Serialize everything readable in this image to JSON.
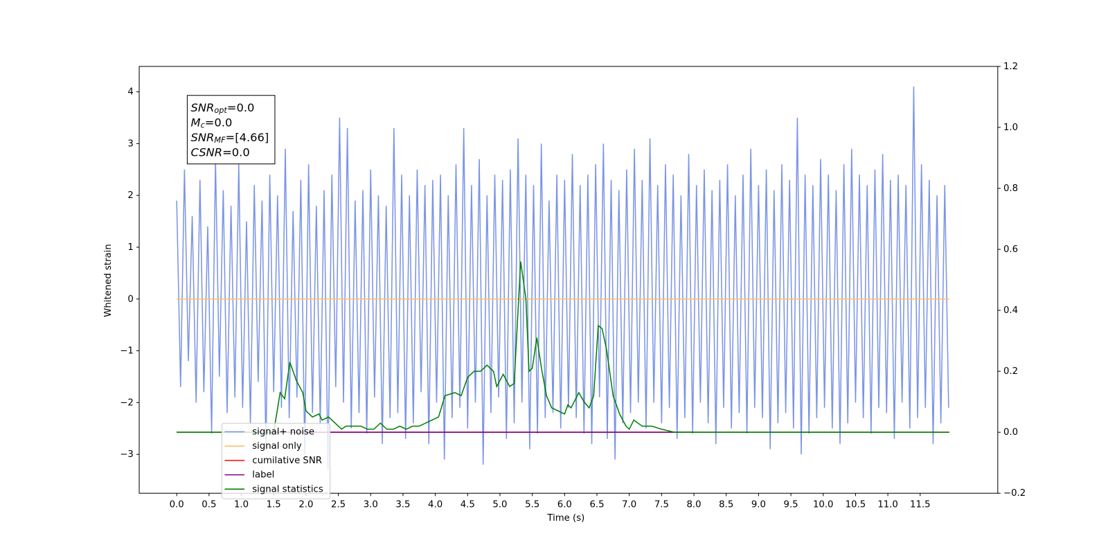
{
  "chart_data": {
    "type": "line",
    "xlabel": "Time (s)",
    "ylabel": "Whitened strain",
    "xlim": [
      -0.58,
      12.7
    ],
    "ylim": [
      -3.75,
      4.49
    ],
    "y2lim": [
      -0.2,
      1.2
    ],
    "xticks": [
      {
        "value": 0,
        "label": "0.0"
      },
      {
        "value": 0.5,
        "label": "0.5"
      },
      {
        "value": 1,
        "label": "1.0"
      },
      {
        "value": 1.5,
        "label": "1.5"
      },
      {
        "value": 2,
        "label": "2.0"
      },
      {
        "value": 2.5,
        "label": "2.5"
      },
      {
        "value": 3,
        "label": "3.0"
      },
      {
        "value": 3.5,
        "label": "3.5"
      },
      {
        "value": 4,
        "label": "4.0"
      },
      {
        "value": 4.5,
        "label": "4.5"
      },
      {
        "value": 5,
        "label": "5.0"
      },
      {
        "value": 5.5,
        "label": "5.5"
      },
      {
        "value": 6,
        "label": "6.0"
      },
      {
        "value": 6.5,
        "label": "6.5"
      },
      {
        "value": 7,
        "label": "7.0"
      },
      {
        "value": 7.5,
        "label": "7.5"
      },
      {
        "value": 8,
        "label": "8.0"
      },
      {
        "value": 8.5,
        "label": "8.5"
      },
      {
        "value": 9,
        "label": "9.0"
      },
      {
        "value": 9.5,
        "label": "9.5"
      },
      {
        "value": 10,
        "label": "10.0"
      },
      {
        "value": 10.5,
        "label": "10.5"
      },
      {
        "value": 11,
        "label": "11.0"
      },
      {
        "value": 11.5,
        "label": "11.5"
      }
    ],
    "yticks": [
      {
        "value": -3,
        "label": "−3"
      },
      {
        "value": -2,
        "label": "−2"
      },
      {
        "value": -1,
        "label": "−1"
      },
      0,
      1,
      2,
      3,
      4
    ],
    "y2ticks": [
      {
        "value": -0.2,
        "label": "−0.2"
      },
      {
        "value": 0,
        "label": "0.0"
      },
      {
        "value": 0.2,
        "label": "0.2"
      },
      {
        "value": 0.4,
        "label": "0.4"
      },
      {
        "value": 0.6,
        "label": "0.6"
      },
      {
        "value": 0.8,
        "label": "0.8"
      },
      {
        "value": 1,
        "label": "1.0"
      },
      {
        "value": 1.2,
        "label": "1.2"
      }
    ],
    "legend": "lower left",
    "textbox": [
      {
        "name": "SNR",
        "sub": "opt",
        "value": "=0.0"
      },
      {
        "name": "M",
        "sub": "c",
        "value": "=0.0"
      },
      {
        "name": "SNR",
        "sub": "MF",
        "value": "=[4.66]"
      },
      {
        "name": "CSNR",
        "value": "=0.0"
      }
    ],
    "series": [
      {
        "name": "signal+ noise",
        "color": "#7a94e6",
        "axis": "y",
        "x": [
          0,
          0.06,
          0.12,
          0.18,
          0.24,
          0.3,
          0.36,
          0.42,
          0.48,
          0.54,
          0.6,
          0.66,
          0.72,
          0.78,
          0.84,
          0.9,
          0.96,
          1.02,
          1.08,
          1.14,
          1.2,
          1.26,
          1.32,
          1.38,
          1.44,
          1.5,
          1.56,
          1.62,
          1.68,
          1.74,
          1.8,
          1.86,
          1.92,
          1.98,
          2.04,
          2.1,
          2.16,
          2.22,
          2.28,
          2.34,
          2.4,
          2.46,
          2.52,
          2.58,
          2.64,
          2.7,
          2.76,
          2.82,
          2.88,
          2.94,
          3,
          3.06,
          3.12,
          3.18,
          3.24,
          3.3,
          3.36,
          3.42,
          3.48,
          3.54,
          3.6,
          3.66,
          3.72,
          3.78,
          3.84,
          3.9,
          3.96,
          4.02,
          4.08,
          4.14,
          4.2,
          4.26,
          4.32,
          4.38,
          4.44,
          4.5,
          4.56,
          4.62,
          4.68,
          4.74,
          4.8,
          4.86,
          4.92,
          4.98,
          5.04,
          5.1,
          5.16,
          5.22,
          5.28,
          5.34,
          5.4,
          5.46,
          5.52,
          5.58,
          5.64,
          5.7,
          5.76,
          5.82,
          5.88,
          5.94,
          6,
          6.06,
          6.12,
          6.18,
          6.24,
          6.3,
          6.36,
          6.42,
          6.48,
          6.54,
          6.6,
          6.66,
          6.72,
          6.78,
          6.84,
          6.9,
          6.96,
          7.02,
          7.08,
          7.14,
          7.2,
          7.26,
          7.32,
          7.38,
          7.44,
          7.5,
          7.56,
          7.62,
          7.68,
          7.74,
          7.8,
          7.86,
          7.92,
          7.98,
          8.04,
          8.1,
          8.16,
          8.22,
          8.28,
          8.34,
          8.4,
          8.46,
          8.52,
          8.58,
          8.64,
          8.7,
          8.76,
          8.82,
          8.88,
          8.94,
          9,
          9.06,
          9.12,
          9.18,
          9.24,
          9.3,
          9.36,
          9.42,
          9.48,
          9.54,
          9.6,
          9.66,
          9.72,
          9.78,
          9.84,
          9.9,
          9.96,
          10.02,
          10.08,
          10.14,
          10.2,
          10.26,
          10.32,
          10.38,
          10.44,
          10.5,
          10.56,
          10.62,
          10.68,
          10.74,
          10.8,
          10.86,
          10.92,
          10.98,
          11.04,
          11.1,
          11.16,
          11.22,
          11.28,
          11.34,
          11.4,
          11.46,
          11.52,
          11.58,
          11.64,
          11.7,
          11.76,
          11.82,
          11.88,
          11.94
        ],
        "values": [
          1.9,
          -1.7,
          2.5,
          -1.2,
          1.6,
          -2.0,
          2.3,
          -1.8,
          1.4,
          -2.6,
          2.7,
          -1.5,
          2.1,
          -2.2,
          1.8,
          -1.9,
          2.6,
          -2.1,
          1.5,
          -2.4,
          2.2,
          -1.6,
          1.9,
          -2.9,
          2.4,
          -1.8,
          2.0,
          -2.1,
          2.9,
          -2.3,
          1.7,
          -1.9,
          2.3,
          -3.0,
          2.6,
          -2.2,
          1.8,
          -2.4,
          2.1,
          -3.3,
          2.4,
          -1.7,
          3.5,
          -2.0,
          3.3,
          -2.5,
          1.9,
          -2.2,
          2.1,
          -2.6,
          2.5,
          -1.9,
          2.0,
          -2.8,
          1.8,
          -2.3,
          3.3,
          -2.2,
          2.4,
          -2.7,
          2.0,
          -2.4,
          2.5,
          -1.8,
          2.2,
          -2.8,
          2.3,
          -2.0,
          2.4,
          -3.1,
          2.0,
          -2.3,
          2.6,
          -2.1,
          3.3,
          -2.5,
          2.2,
          -2.0,
          2.7,
          -3.2,
          2.0,
          -2.2,
          2.4,
          -1.9,
          2.3,
          -2.7,
          2.5,
          -2.4,
          3.1,
          -2.0,
          2.4,
          -2.9,
          2.2,
          -2.6,
          3.0,
          -2.3,
          1.9,
          -2.2,
          2.4,
          -2.5,
          2.3,
          -2.1,
          2.8,
          -2.3,
          2.2,
          -2.6,
          2.4,
          -2.8,
          2.6,
          -1.9,
          3.0,
          -2.7,
          2.3,
          -3.1,
          2.1,
          -2.4,
          2.5,
          -2.2,
          2.9,
          -2.0,
          2.3,
          -2.5,
          3.1,
          -2.0,
          2.2,
          -2.4,
          2.6,
          -2.1,
          2.4,
          -2.7,
          2.0,
          -2.3,
          2.8,
          -2.6,
          2.2,
          -2.0,
          2.5,
          -2.4,
          2.1,
          -2.8,
          2.3,
          -2.1,
          2.6,
          -2.5,
          2.0,
          -2.2,
          2.4,
          -2.6,
          2.9,
          -2.1,
          2.2,
          -2.3,
          2.5,
          -2.9,
          2.1,
          -2.4,
          2.6,
          -2.2,
          2.3,
          -2.5,
          3.5,
          -3.0,
          2.4,
          -2.6,
          2.2,
          -2.3,
          2.7,
          -2.1,
          2.4,
          -2.5,
          2.1,
          -2.8,
          2.6,
          -2.4,
          2.9,
          -2.0,
          2.4,
          -2.3,
          2.2,
          -2.6,
          2.5,
          -2.1,
          2.8,
          -2.2,
          2.3,
          -2.7,
          2.4,
          -2.0,
          2.2,
          -2.5,
          4.1,
          -2.3,
          2.6,
          -2.1,
          2.3,
          -2.8,
          2.0,
          -2.4,
          2.2,
          -2.1
        ]
      },
      {
        "name": "signal only",
        "color": "#ffbf66",
        "axis": "y",
        "x": [
          0,
          11.95
        ],
        "values": [
          0,
          0
        ]
      },
      {
        "name": "cumilative SNR",
        "color": "#ff0000",
        "axis": "y2",
        "x": [
          0,
          11.95
        ],
        "values": [
          0,
          0
        ]
      },
      {
        "name": "label",
        "color": "#800080",
        "axis": "y2",
        "x": [
          1.25,
          8.0
        ],
        "values": [
          0,
          0
        ]
      },
      {
        "name": "signal statistics",
        "color": "#008000",
        "axis": "y2",
        "x": [
          0,
          1.5,
          1.6,
          1.67,
          1.75,
          1.85,
          1.95,
          2.0,
          2.1,
          2.2,
          2.25,
          2.35,
          2.45,
          2.55,
          2.62,
          2.75,
          2.85,
          2.95,
          3.05,
          3.15,
          3.25,
          3.35,
          3.45,
          3.55,
          3.65,
          3.75,
          3.85,
          3.95,
          4.05,
          4.15,
          4.3,
          4.4,
          4.5,
          4.6,
          4.7,
          4.8,
          4.9,
          4.95,
          5.05,
          5.15,
          5.22,
          5.32,
          5.4,
          5.45,
          5.5,
          5.57,
          5.65,
          5.72,
          5.8,
          5.9,
          6.0,
          6.05,
          6.1,
          6.22,
          6.3,
          6.38,
          6.45,
          6.52,
          6.58,
          6.65,
          6.75,
          6.85,
          6.95,
          7.0,
          7.07,
          7.2,
          7.35,
          7.5,
          7.7,
          8.0,
          11.95
        ],
        "values": [
          0,
          0,
          0.13,
          0.11,
          0.23,
          0.17,
          0.13,
          0.07,
          0.05,
          0.06,
          0.04,
          0.05,
          0.03,
          0.01,
          0.02,
          0.02,
          0.02,
          0.01,
          0.01,
          0.03,
          0.01,
          0.01,
          0.02,
          0.01,
          0.02,
          0.02,
          0.03,
          0.04,
          0.05,
          0.12,
          0.13,
          0.12,
          0.18,
          0.2,
          0.2,
          0.22,
          0.2,
          0.15,
          0.19,
          0.15,
          0.16,
          0.56,
          0.44,
          0.2,
          0.21,
          0.31,
          0.2,
          0.12,
          0.08,
          0.07,
          0.06,
          0.09,
          0.08,
          0.13,
          0.1,
          0.08,
          0.12,
          0.35,
          0.34,
          0.27,
          0.12,
          0.06,
          0.02,
          0.01,
          0.04,
          0.02,
          0.02,
          0.01,
          0,
          0,
          0
        ]
      }
    ]
  }
}
